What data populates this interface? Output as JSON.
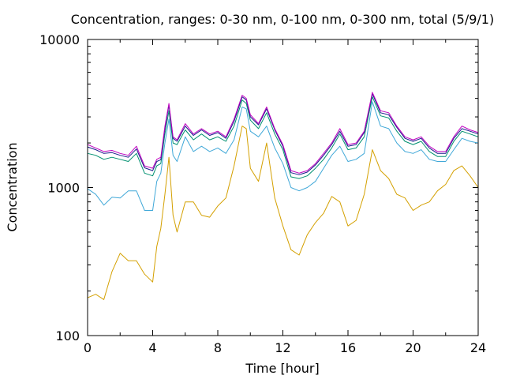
{
  "chart_data": {
    "type": "line",
    "title": "Concentration, ranges: 0-30 nm, 0-100 nm, 0-300 nm, total (5/9/1)",
    "xlabel": "Time [hour]",
    "ylabel": "Concentration",
    "xlim": [
      0,
      24
    ],
    "ylim": [
      100,
      10000
    ],
    "yscale": "log",
    "grid": false,
    "legend": "none",
    "x_ticks": [
      "0",
      "4",
      "8",
      "12",
      "16",
      "20",
      "24"
    ],
    "y_ticks": [
      "100",
      "1000",
      "10000"
    ],
    "x": [
      0,
      0.5,
      1,
      1.5,
      2,
      2.5,
      3,
      3.5,
      4,
      4.25,
      4.5,
      4.75,
      5,
      5.25,
      5.5,
      6,
      6.5,
      7,
      7.5,
      8,
      8.5,
      9,
      9.5,
      9.75,
      10,
      10.5,
      11,
      11.5,
      12,
      12.5,
      13,
      13.5,
      14,
      14.5,
      15,
      15.5,
      16,
      16.5,
      17,
      17.5,
      18,
      18.5,
      19,
      19.5,
      20,
      20.5,
      21,
      21.5,
      22,
      22.5,
      23,
      23.5,
      24
    ],
    "series": [
      {
        "color": "#c000c0",
        "values": [
          1950,
          1850,
          1750,
          1780,
          1700,
          1650,
          1900,
          1400,
          1350,
          1550,
          1600,
          2600,
          3700,
          2200,
          2100,
          2700,
          2300,
          2500,
          2300,
          2400,
          2200,
          2900,
          4200,
          4000,
          3100,
          2700,
          3500,
          2500,
          1950,
          1300,
          1250,
          1300,
          1450,
          1700,
          2000,
          2500,
          1950,
          2000,
          2400,
          4400,
          3300,
          3200,
          2600,
          2200,
          2100,
          2200,
          1900,
          1750,
          1750,
          2200,
          2600,
          2450,
          2350
        ]
      },
      {
        "color": "#1a1a8c",
        "values": [
          1880,
          1800,
          1700,
          1720,
          1650,
          1600,
          1820,
          1360,
          1300,
          1500,
          1540,
          2500,
          3600,
          2150,
          2050,
          2600,
          2250,
          2450,
          2250,
          2350,
          2150,
          2800,
          4100,
          3900,
          3000,
          2650,
          3400,
          2450,
          1900,
          1260,
          1220,
          1270,
          1420,
          1650,
          1950,
          2400,
          1900,
          1950,
          2350,
          4300,
          3200,
          3100,
          2550,
          2150,
          2050,
          2150,
          1850,
          1700,
          1700,
          2150,
          2500,
          2400,
          2300
        ]
      },
      {
        "color": "#009070",
        "values": [
          1700,
          1650,
          1550,
          1600,
          1550,
          1500,
          1700,
          1250,
          1200,
          1400,
          1450,
          2300,
          3300,
          2000,
          1950,
          2450,
          2100,
          2300,
          2100,
          2200,
          2050,
          2600,
          3900,
          3700,
          2850,
          2500,
          3200,
          2300,
          1800,
          1180,
          1150,
          1200,
          1350,
          1550,
          1850,
          2300,
          1800,
          1850,
          2200,
          4100,
          3050,
          2950,
          2400,
          2050,
          1950,
          2050,
          1750,
          1620,
          1620,
          2050,
          2400,
          2300,
          2200
        ]
      },
      {
        "color": "#40a8d8",
        "values": [
          980,
          900,
          760,
          860,
          850,
          950,
          950,
          700,
          700,
          1100,
          1250,
          2000,
          2900,
          1650,
          1500,
          2200,
          1750,
          1900,
          1750,
          1850,
          1700,
          2100,
          3500,
          3400,
          2400,
          2200,
          2600,
          1850,
          1450,
          1000,
          950,
          1000,
          1100,
          1350,
          1650,
          1900,
          1500,
          1550,
          1700,
          3800,
          2600,
          2500,
          2000,
          1750,
          1700,
          1800,
          1550,
          1500,
          1500,
          1800,
          2150,
          2050,
          2000
        ]
      },
      {
        "color": "#d4a000",
        "values": [
          180,
          190,
          175,
          270,
          360,
          320,
          320,
          260,
          230,
          400,
          530,
          900,
          1600,
          650,
          500,
          800,
          800,
          650,
          630,
          750,
          850,
          1400,
          2600,
          2500,
          1350,
          1100,
          2000,
          850,
          550,
          380,
          350,
          480,
          580,
          670,
          870,
          800,
          550,
          600,
          900,
          1800,
          1300,
          1150,
          900,
          850,
          700,
          760,
          800,
          950,
          1050,
          1300,
          1400,
          1200,
          1000
        ]
      }
    ]
  }
}
